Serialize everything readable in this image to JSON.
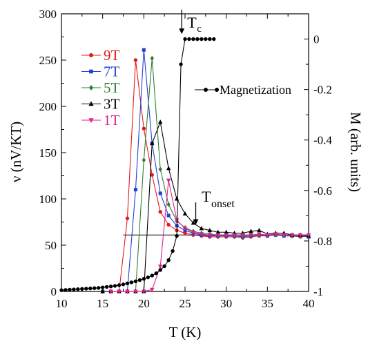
{
  "chart_data": {
    "type": "line",
    "x_axis": {
      "label": "T (K)",
      "range": [
        10,
        40
      ],
      "ticks": [
        10,
        15,
        20,
        25,
        30,
        35,
        40
      ]
    },
    "y_left": {
      "label": "ν (nV/KT)",
      "range": [
        0,
        300
      ],
      "ticks": [
        0,
        50,
        100,
        150,
        200,
        250,
        300
      ]
    },
    "y_right": {
      "label": "M (arb. units)",
      "range": [
        -1,
        0.1
      ],
      "ticks": [
        0,
        -0.2,
        -0.4,
        -0.6,
        -0.8,
        -1
      ],
      "tick_labels": [
        "0",
        "-0.2",
        "-0.4",
        "-0.6",
        "-0.8",
        "-1"
      ]
    },
    "legend": {
      "position": "upper-left"
    },
    "series": [
      {
        "name": "9T",
        "axis": "left",
        "color": "#e31a1c",
        "marker": "circle",
        "x": [
          15,
          16,
          17,
          18,
          19,
          20,
          21,
          22,
          23,
          24,
          25,
          26,
          27,
          28,
          29,
          30,
          31,
          32,
          33,
          34,
          35,
          36,
          37,
          38,
          39,
          40
        ],
        "y": [
          0,
          0,
          0,
          79,
          250,
          176,
          126,
          86,
          72,
          66,
          63,
          61,
          60,
          59,
          59,
          59,
          59,
          58,
          59,
          60,
          60,
          61,
          60,
          60,
          59,
          60
        ]
      },
      {
        "name": "7T",
        "axis": "left",
        "color": "#1f3fd6",
        "marker": "square",
        "x": [
          15,
          16,
          17,
          18,
          19,
          20,
          21,
          22,
          23,
          24,
          25,
          26,
          27,
          28,
          29,
          30,
          31,
          32,
          33,
          34,
          35,
          36,
          37,
          38,
          39,
          40
        ],
        "y": [
          0,
          0,
          0,
          0,
          110,
          261,
          160,
          106,
          82,
          71,
          66,
          63,
          61,
          60,
          60,
          60,
          60,
          59,
          60,
          61,
          60,
          61,
          60,
          60,
          60,
          59
        ]
      },
      {
        "name": "5T",
        "axis": "left",
        "color": "#2e7d32",
        "marker": "diamond",
        "x": [
          15,
          16,
          17,
          18,
          19,
          20,
          21,
          22,
          23,
          24,
          25,
          26,
          27,
          28,
          29,
          30,
          31,
          32,
          33,
          34,
          35,
          36,
          37,
          38,
          39,
          40
        ],
        "y": [
          0,
          0,
          0,
          0,
          0,
          142,
          252,
          132,
          94,
          76,
          69,
          65,
          63,
          62,
          61,
          61,
          61,
          60,
          61,
          61,
          61,
          61,
          61,
          60,
          60,
          60
        ]
      },
      {
        "name": "3T",
        "axis": "left",
        "color": "#000000",
        "marker": "triangle-up",
        "x": [
          15,
          16,
          17,
          18,
          19,
          20,
          21,
          22,
          23,
          24,
          25,
          26,
          27,
          28,
          29,
          30,
          31,
          32,
          33,
          34,
          35,
          36,
          37,
          38,
          39,
          40
        ],
        "y": [
          0,
          0,
          0,
          0,
          0,
          0,
          160,
          183,
          133,
          100,
          84,
          74,
          68,
          66,
          64,
          64,
          63,
          63,
          65,
          66,
          62,
          63,
          63,
          61,
          61,
          60
        ]
      },
      {
        "name": "1T",
        "axis": "left",
        "color": "#e0208f",
        "marker": "triangle-down",
        "x": [
          16,
          17,
          18,
          19,
          20,
          21,
          22,
          23,
          24,
          25,
          26,
          27,
          28,
          29,
          30,
          31,
          32,
          33,
          34,
          35,
          36,
          37,
          38,
          39,
          40
        ],
        "y": [
          0,
          0,
          0,
          0,
          0,
          2,
          27,
          120,
          77,
          68,
          64,
          62,
          61,
          61,
          61,
          61,
          61,
          61,
          62,
          61,
          62,
          61,
          61,
          61,
          61
        ]
      },
      {
        "name": "Magnetization",
        "axis": "right",
        "color": "#000000",
        "marker": "circle",
        "x": [
          10,
          10.5,
          11,
          11.5,
          12,
          12.5,
          13,
          13.5,
          14,
          14.5,
          15,
          15.5,
          16,
          16.5,
          17,
          17.5,
          18,
          18.5,
          19,
          19.5,
          20,
          20.5,
          21,
          21.5,
          22,
          22.5,
          23,
          23.5,
          24,
          24.5,
          25,
          25.5,
          26,
          26.5,
          27,
          27.5,
          28,
          28.5
        ],
        "y": [
          -0.995,
          -0.994,
          -0.993,
          -0.992,
          -0.991,
          -0.99,
          -0.989,
          -0.988,
          -0.987,
          -0.986,
          -0.984,
          -0.982,
          -0.98,
          -0.978,
          -0.975,
          -0.972,
          -0.968,
          -0.964,
          -0.96,
          -0.955,
          -0.95,
          -0.944,
          -0.937,
          -0.928,
          -0.915,
          -0.9,
          -0.876,
          -0.84,
          -0.78,
          -0.1,
          0,
          0,
          0,
          0,
          0,
          0,
          0,
          0
        ]
      }
    ],
    "reference_line": {
      "axis": "left",
      "y": 61,
      "x_range": [
        17.5,
        40
      ]
    },
    "annotations": [
      {
        "text": "T",
        "subscript": "c",
        "arrow_x": 24.6,
        "arrow_tip_y_right": 0.02
      },
      {
        "text": "T",
        "subscript": "onset",
        "arrow_x": 26.3,
        "arrow_tip_y_left": 72
      }
    ]
  }
}
